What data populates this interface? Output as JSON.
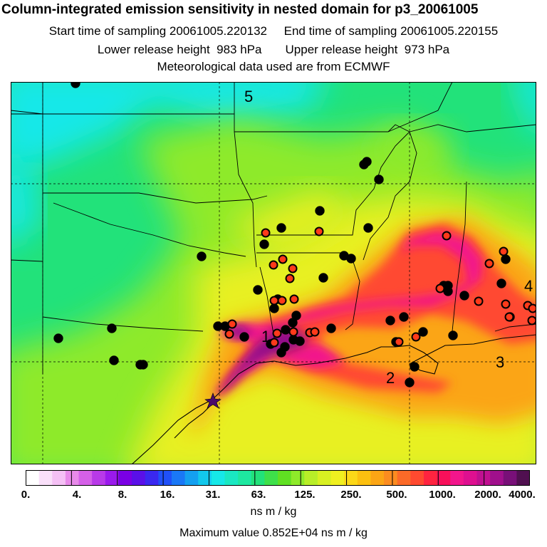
{
  "header": {
    "title": "Column-integrated emission sensitivity in nested domain for p3_20061005",
    "line1": "Start time of sampling 20061005.220132     End time of sampling 20061005.220155",
    "line2": "Lower release height  983 hPa       Upper release height  973 hPa",
    "line3": "Meteorological data used are from ECMWF"
  },
  "map": {
    "region_labels": [
      "1",
      "2",
      "3",
      "4",
      "5"
    ],
    "release_marker": "star-marker",
    "field_colors": {
      "cyan": "#16e8e8",
      "green": "#22e27a",
      "lightgreen": "#8eea2a",
      "yellow": "#e8f020",
      "orange": "#fba515",
      "red": "#ff4a30",
      "magenta": "#f2168c",
      "purple": "#93108a"
    },
    "site_colors": {
      "black": "#000000",
      "red": "#ff3a1a"
    }
  },
  "colorbar": {
    "labels": [
      "0.",
      "4.",
      "8.",
      "16.",
      "31.",
      "63.",
      "125.",
      "250.",
      "500.",
      "1000.",
      "2000.",
      "4000."
    ],
    "colors": [
      "#ffffff",
      "#fae0fa",
      "#f5c0f5",
      "#e88aea",
      "#d560e8",
      "#b83ae8",
      "#9a1aec",
      "#7a00e4",
      "#5a10e8",
      "#3a28f0",
      "#2050f8",
      "#1a78f6",
      "#14a0f0",
      "#12c8ec",
      "#16e8e8",
      "#1ae8c2",
      "#1ee8a0",
      "#22e27a",
      "#3ee04a",
      "#60e022",
      "#8eea2a",
      "#b8ee28",
      "#d8f022",
      "#f0f020",
      "#fcd818",
      "#fcc010",
      "#fba515",
      "#fb8c20",
      "#fb6a28",
      "#ff4a30",
      "#ff2440",
      "#f8105a",
      "#f2168c",
      "#de1090",
      "#c01090",
      "#a0108c",
      "#781078",
      "#501050"
    ],
    "unit": "ns m / kg"
  },
  "footer": {
    "max_value": "Maximum value  0.852E+04 ns m / kg"
  }
}
